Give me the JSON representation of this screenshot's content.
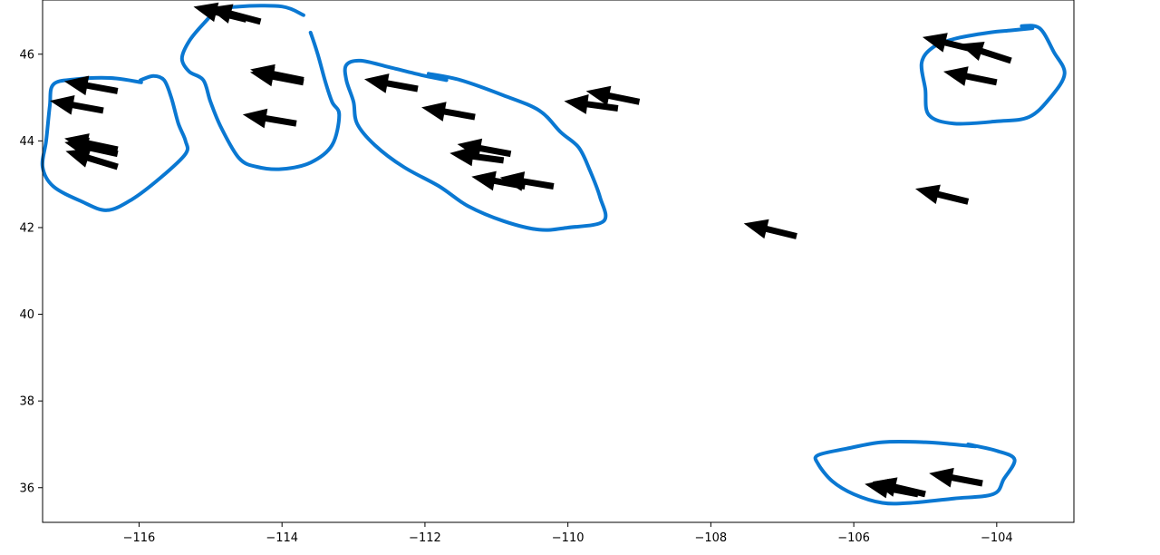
{
  "chart_data": {
    "type": "scatter",
    "title": "",
    "xlabel": "",
    "ylabel": "",
    "xlim": [
      -117.35,
      -102.92
    ],
    "ylim": [
      35.2,
      47.25
    ],
    "x_ticks": [
      -116,
      -114,
      -112,
      -110,
      -108,
      -106,
      -104
    ],
    "y_ticks": [
      36,
      38,
      40,
      42,
      44,
      46
    ],
    "x_tick_labels": [
      "−116",
      "−114",
      "−112",
      "−110",
      "−108",
      "−106",
      "−104"
    ],
    "y_tick_labels": [
      "36",
      "38",
      "40",
      "42",
      "44",
      "46"
    ],
    "grid": false,
    "arrow_color": "#000000",
    "annotation_color": "#0a78d2",
    "arrows": [
      {
        "x": -116.3,
        "y": 45.15,
        "dx": -1.0,
        "dy": 0.3
      },
      {
        "x": -116.5,
        "y": 44.7,
        "dx": -1.0,
        "dy": 0.3
      },
      {
        "x": -116.3,
        "y": 43.8,
        "dx": -1.1,
        "dy": 0.38
      },
      {
        "x": -116.3,
        "y": 43.7,
        "dx": -1.0,
        "dy": 0.36
      },
      {
        "x": -116.3,
        "y": 43.4,
        "dx": -1.0,
        "dy": 0.5
      },
      {
        "x": -114.5,
        "y": 46.8,
        "dx": -1.0,
        "dy": 0.4
      },
      {
        "x": -114.3,
        "y": 46.75,
        "dx": -0.8,
        "dy": 0.35
      },
      {
        "x": -113.7,
        "y": 45.4,
        "dx": -0.9,
        "dy": 0.3
      },
      {
        "x": -113.7,
        "y": 45.35,
        "dx": -0.8,
        "dy": 0.25
      },
      {
        "x": -113.8,
        "y": 44.4,
        "dx": -0.9,
        "dy": 0.25
      },
      {
        "x": -112.1,
        "y": 45.2,
        "dx": -1.0,
        "dy": 0.3
      },
      {
        "x": -111.3,
        "y": 44.55,
        "dx": -1.0,
        "dy": 0.3
      },
      {
        "x": -110.8,
        "y": 43.7,
        "dx": -1.0,
        "dy": 0.3
      },
      {
        "x": -110.9,
        "y": 43.55,
        "dx": -0.9,
        "dy": 0.2
      },
      {
        "x": -110.2,
        "y": 42.95,
        "dx": -1.1,
        "dy": 0.3
      },
      {
        "x": -110.6,
        "y": 42.95,
        "dx": -1.0,
        "dy": 0.3
      },
      {
        "x": -109.0,
        "y": 44.9,
        "dx": -0.9,
        "dy": 0.3
      },
      {
        "x": -109.3,
        "y": 44.75,
        "dx": -0.9,
        "dy": 0.2
      },
      {
        "x": -106.8,
        "y": 41.8,
        "dx": -0.75,
        "dy": 0.3
      },
      {
        "x": -104.4,
        "y": 42.6,
        "dx": -0.75,
        "dy": 0.3
      },
      {
        "x": -103.8,
        "y": 45.85,
        "dx": -0.85,
        "dy": 0.45
      },
      {
        "x": -104.0,
        "y": 45.35,
        "dx": -0.75,
        "dy": 0.25
      },
      {
        "x": -104.3,
        "y": 46.1,
        "dx": -0.75,
        "dy": 0.3
      },
      {
        "x": -105.0,
        "y": 35.85,
        "dx": -0.9,
        "dy": 0.35
      },
      {
        "x": -105.1,
        "y": 35.85,
        "dx": -0.8,
        "dy": 0.25
      },
      {
        "x": -104.2,
        "y": 36.1,
        "dx": -0.8,
        "dy": 0.25
      }
    ],
    "annotations": [
      {
        "name": "loop-west",
        "points": [
          [
            -115.97,
            45.35
          ],
          [
            -116.4,
            45.45
          ],
          [
            -116.9,
            45.42
          ],
          [
            -117.2,
            45.3
          ],
          [
            -117.25,
            44.8
          ],
          [
            -117.3,
            44.0
          ],
          [
            -117.35,
            43.4
          ],
          [
            -117.2,
            42.95
          ],
          [
            -116.8,
            42.6
          ],
          [
            -116.45,
            42.4
          ],
          [
            -116.1,
            42.65
          ],
          [
            -115.7,
            43.15
          ],
          [
            -115.35,
            43.7
          ],
          [
            -115.35,
            44.0
          ],
          [
            -115.45,
            44.4
          ],
          [
            -115.55,
            45.0
          ],
          [
            -115.65,
            45.4
          ],
          [
            -115.8,
            45.5
          ],
          [
            -115.98,
            45.4
          ]
        ]
      },
      {
        "name": "loop-northwest",
        "points": [
          [
            -113.6,
            46.5
          ],
          [
            -113.5,
            46.0
          ],
          [
            -113.4,
            45.4
          ],
          [
            -113.3,
            44.9
          ],
          [
            -113.2,
            44.6
          ],
          [
            -113.3,
            43.9
          ],
          [
            -113.6,
            43.5
          ],
          [
            -114.0,
            43.35
          ],
          [
            -114.35,
            43.4
          ],
          [
            -114.6,
            43.6
          ],
          [
            -114.85,
            44.3
          ],
          [
            -115.0,
            44.9
          ],
          [
            -115.1,
            45.4
          ],
          [
            -115.3,
            45.6
          ],
          [
            -115.4,
            45.9
          ],
          [
            -115.3,
            46.3
          ],
          [
            -115.1,
            46.7
          ],
          [
            -114.9,
            47.0
          ],
          [
            -114.6,
            47.1
          ],
          [
            -114.0,
            47.1
          ],
          [
            -113.7,
            46.9
          ]
        ]
      },
      {
        "name": "loop-central",
        "points": [
          [
            -111.95,
            45.55
          ],
          [
            -111.5,
            45.4
          ],
          [
            -110.9,
            45.05
          ],
          [
            -110.4,
            44.7
          ],
          [
            -110.1,
            44.2
          ],
          [
            -109.85,
            43.85
          ],
          [
            -109.7,
            43.35
          ],
          [
            -109.55,
            42.7
          ],
          [
            -109.5,
            42.15
          ],
          [
            -110.0,
            42.0
          ],
          [
            -110.4,
            41.95
          ],
          [
            -110.9,
            42.15
          ],
          [
            -111.4,
            42.5
          ],
          [
            -111.8,
            42.95
          ],
          [
            -112.3,
            43.4
          ],
          [
            -112.7,
            43.9
          ],
          [
            -112.95,
            44.4
          ],
          [
            -113.0,
            44.9
          ],
          [
            -113.1,
            45.4
          ],
          [
            -113.1,
            45.75
          ],
          [
            -112.9,
            45.85
          ],
          [
            -112.5,
            45.7
          ],
          [
            -112.0,
            45.5
          ],
          [
            -111.7,
            45.4
          ]
        ]
      },
      {
        "name": "loop-northeast",
        "points": [
          [
            -103.65,
            46.65
          ],
          [
            -103.4,
            46.6
          ],
          [
            -103.2,
            46.05
          ],
          [
            -103.05,
            45.55
          ],
          [
            -103.25,
            45.0
          ],
          [
            -103.55,
            44.55
          ],
          [
            -104.0,
            44.45
          ],
          [
            -104.6,
            44.4
          ],
          [
            -104.95,
            44.6
          ],
          [
            -105.0,
            45.2
          ],
          [
            -105.05,
            45.8
          ],
          [
            -104.9,
            46.15
          ],
          [
            -104.6,
            46.35
          ],
          [
            -104.1,
            46.5
          ],
          [
            -103.8,
            46.55
          ],
          [
            -103.5,
            46.6
          ]
        ]
      },
      {
        "name": "loop-southeast",
        "points": [
          [
            -104.4,
            37.0
          ],
          [
            -104.0,
            36.85
          ],
          [
            -103.75,
            36.65
          ],
          [
            -103.9,
            36.2
          ],
          [
            -104.05,
            35.85
          ],
          [
            -104.6,
            35.75
          ],
          [
            -105.2,
            35.65
          ],
          [
            -105.6,
            35.65
          ],
          [
            -106.0,
            35.85
          ],
          [
            -106.3,
            36.15
          ],
          [
            -106.5,
            36.55
          ],
          [
            -106.5,
            36.75
          ],
          [
            -106.1,
            36.9
          ],
          [
            -105.6,
            37.05
          ],
          [
            -105.0,
            37.05
          ],
          [
            -104.6,
            37.0
          ],
          [
            -104.3,
            36.95
          ]
        ]
      }
    ]
  }
}
